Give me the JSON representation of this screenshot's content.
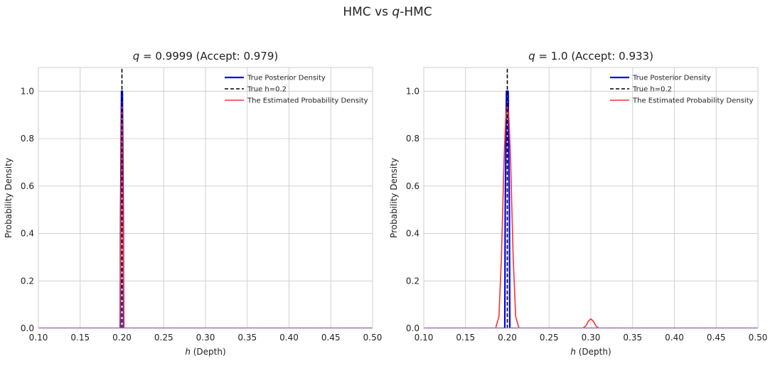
{
  "figure": {
    "suptitle_pre": "HMC vs ",
    "suptitle_q": "q",
    "suptitle_post": "-HMC"
  },
  "chart_data": [
    {
      "type": "line",
      "title_q": "q",
      "title_eq": " = 0.9999",
      "title_rest": " (Accept: 0.979)",
      "xlabel_var": "h",
      "xlabel_rest": " (Depth)",
      "ylabel": "Probability Density",
      "xlim": [
        0.1,
        0.5
      ],
      "ylim": [
        0.0,
        1.1
      ],
      "xticks": [
        "0.10",
        "0.15",
        "0.20",
        "0.25",
        "0.30",
        "0.35",
        "0.40",
        "0.45",
        "0.50"
      ],
      "yticks": [
        "0.0",
        "0.2",
        "0.4",
        "0.6",
        "0.8",
        "1.0"
      ],
      "grid": true,
      "legend_position": "top-right",
      "colors": {
        "true_density": "#0000ee",
        "true_h": "#000000",
        "estimated": "#ff3030",
        "baseline": "#7f00c8"
      },
      "series": [
        {
          "name": "True Posterior Density",
          "style": "solid",
          "width": 2.2,
          "color": "#0000ee",
          "x": [
            0.1,
            0.198,
            0.1985,
            0.1995,
            0.2,
            0.2005,
            0.2015,
            0.202,
            0.5
          ],
          "y": [
            0.0,
            0.0,
            0.5,
            1.0,
            1.0,
            1.0,
            0.5,
            0.0,
            0.0
          ]
        },
        {
          "name": "True h=0.2",
          "style": "dashed",
          "width": 1.6,
          "color": "#000000",
          "x": [
            0.2,
            0.2
          ],
          "y": [
            0.0,
            1.1
          ]
        },
        {
          "name": "The Estimated Probability Density",
          "style": "solid",
          "width": 1.6,
          "color": "#ff3030",
          "x": [
            0.1,
            0.1975,
            0.1985,
            0.1995,
            0.2,
            0.2005,
            0.2015,
            0.2025,
            0.5
          ],
          "y": [
            0.0,
            0.0,
            0.35,
            0.85,
            0.95,
            0.85,
            0.35,
            0.0,
            0.0
          ]
        }
      ]
    },
    {
      "type": "line",
      "title_q": "q",
      "title_eq": " = 1.0",
      "title_rest": " (Accept: 0.933)",
      "xlabel_var": "h",
      "xlabel_rest": " (Depth)",
      "ylabel": "Probability Density",
      "xlim": [
        0.1,
        0.5
      ],
      "ylim": [
        0.0,
        1.1
      ],
      "xticks": [
        "0.10",
        "0.15",
        "0.20",
        "0.25",
        "0.30",
        "0.35",
        "0.40",
        "0.45",
        "0.50"
      ],
      "yticks": [
        "0.0",
        "0.2",
        "0.4",
        "0.6",
        "0.8",
        "1.0"
      ],
      "grid": true,
      "legend_position": "top-right",
      "colors": {
        "true_density": "#0000ee",
        "true_h": "#000000",
        "estimated": "#ff3030",
        "baseline": "#7f00c8"
      },
      "series": [
        {
          "name": "True Posterior Density",
          "style": "solid",
          "width": 2.2,
          "color": "#0000ee",
          "x": [
            0.1,
            0.197,
            0.1975,
            0.199,
            0.2,
            0.201,
            0.2025,
            0.203,
            0.5
          ],
          "y": [
            0.0,
            0.0,
            0.5,
            1.0,
            1.0,
            1.0,
            0.5,
            0.0,
            0.0
          ]
        },
        {
          "name": "True h=0.2",
          "style": "dashed",
          "width": 1.6,
          "color": "#000000",
          "x": [
            0.2,
            0.2
          ],
          "y": [
            0.0,
            1.1
          ]
        },
        {
          "name": "The Estimated Probability Density",
          "style": "solid",
          "width": 1.6,
          "color": "#ff3030",
          "x": [
            0.1,
            0.186,
            0.19,
            0.193,
            0.196,
            0.198,
            0.2,
            0.202,
            0.204,
            0.207,
            0.21,
            0.214,
            0.29,
            0.294,
            0.297,
            0.3,
            0.303,
            0.306,
            0.31,
            0.5
          ],
          "y": [
            0.0,
            0.0,
            0.05,
            0.3,
            0.7,
            0.88,
            0.94,
            0.88,
            0.7,
            0.3,
            0.05,
            0.0,
            0.0,
            0.01,
            0.03,
            0.04,
            0.03,
            0.01,
            0.0,
            0.0
          ]
        }
      ]
    }
  ]
}
